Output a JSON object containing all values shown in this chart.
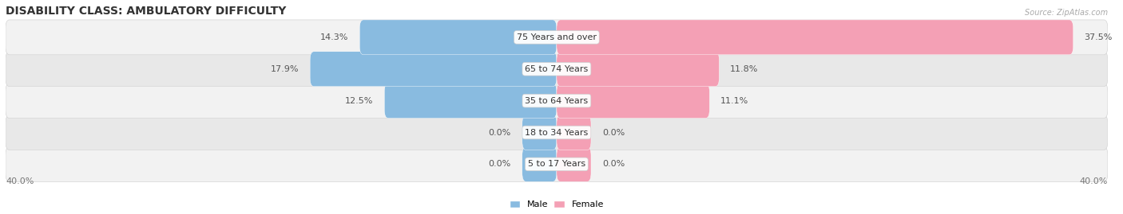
{
  "title": "DISABILITY CLASS: AMBULATORY DIFFICULTY",
  "source": "Source: ZipAtlas.com",
  "categories": [
    "5 to 17 Years",
    "18 to 34 Years",
    "35 to 64 Years",
    "65 to 74 Years",
    "75 Years and over"
  ],
  "male_values": [
    0.0,
    0.0,
    12.5,
    17.9,
    14.3
  ],
  "female_values": [
    0.0,
    0.0,
    11.1,
    11.8,
    37.5
  ],
  "x_max": 40.0,
  "x_min": -40.0,
  "male_color": "#89bbe0",
  "female_color": "#f4a0b5",
  "row_bg_light": "#f2f2f2",
  "row_bg_dark": "#e8e8e8",
  "row_border_color": "#d5d5d5",
  "male_label": "Male",
  "female_label": "Female",
  "axis_label_left": "40.0%",
  "axis_label_right": "40.0%",
  "title_fontsize": 10,
  "label_fontsize": 8,
  "category_fontsize": 8,
  "source_fontsize": 7
}
